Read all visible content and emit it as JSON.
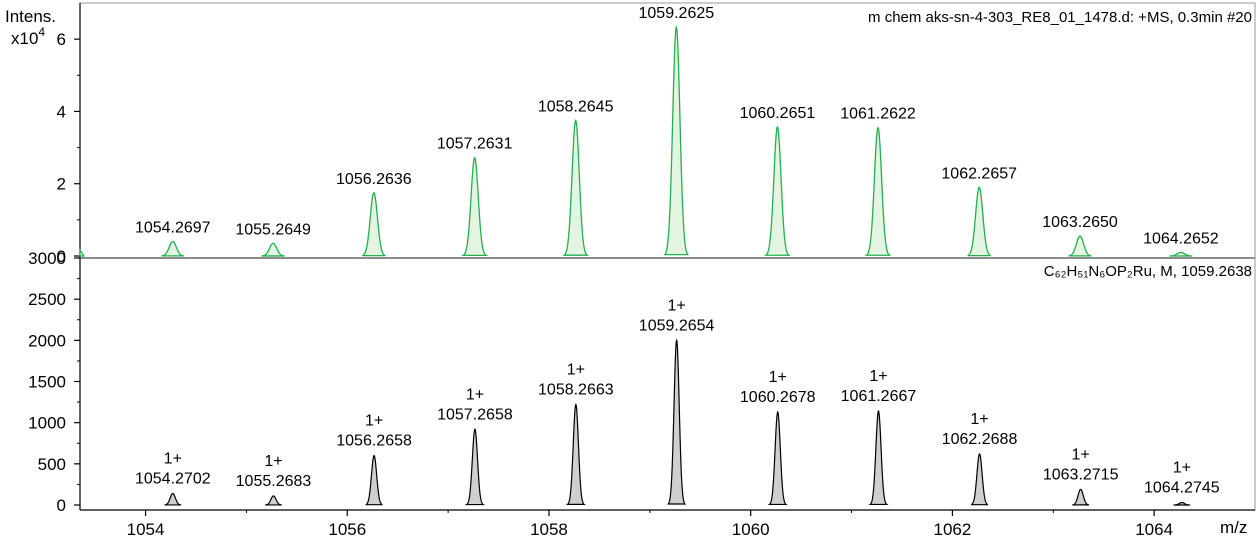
{
  "chart_data": [
    {
      "type": "line",
      "panel": "measured",
      "yaxis_title": "Intens.",
      "yaxis_multiplier": "x10",
      "yaxis_exponent": "4",
      "ylim": [
        0,
        7
      ],
      "yticks": [
        0,
        2,
        4,
        6
      ],
      "caption": "m chem aks-sn-4-303_RE8_01_1478.d: +MS, 0.3min #20",
      "color": "#22b14c",
      "fill": "#e3f4e3",
      "series": [
        {
          "peaks": [
            {
              "x": 1054.2697,
              "y": 0.4,
              "label": "1054.2697"
            },
            {
              "x": 1055.2649,
              "y": 0.35,
              "label": "1055.2649"
            },
            {
              "x": 1056.2636,
              "y": 1.75,
              "label": "1056.2636"
            },
            {
              "x": 1057.2631,
              "y": 2.72,
              "label": "1057.2631"
            },
            {
              "x": 1058.2645,
              "y": 3.75,
              "label": "1058.2645"
            },
            {
              "x": 1059.2625,
              "y": 6.33,
              "label": "1059.2625"
            },
            {
              "x": 1060.2651,
              "y": 3.57,
              "label": "1060.2651"
            },
            {
              "x": 1061.2622,
              "y": 3.55,
              "label": "1061.2622"
            },
            {
              "x": 1062.2657,
              "y": 1.9,
              "label": "1062.2657"
            },
            {
              "x": 1063.265,
              "y": 0.55,
              "label": "1063.2650"
            },
            {
              "x": 1064.2652,
              "y": 0.1,
              "label": "1064.2652"
            }
          ]
        }
      ]
    },
    {
      "type": "line",
      "panel": "simulated",
      "ylim": [
        0,
        3000
      ],
      "yticks": [
        0,
        500,
        1000,
        1500,
        2000,
        2500,
        3000
      ],
      "xlim": [
        1053.35,
        1065.0
      ],
      "xticks": [
        1054,
        1056,
        1058,
        1060,
        1062,
        1064
      ],
      "xlabel": "m/z",
      "caption": "C₆₂H₅₁N₆OP₂Ru, M, 1059.2638",
      "color": "#000000",
      "fill": "#cfcfcf",
      "series": [
        {
          "peaks": [
            {
              "x": 1054.2702,
              "y": 140,
              "charge": "1+",
              "label": "1054.2702"
            },
            {
              "x": 1055.2683,
              "y": 110,
              "charge": "1+",
              "label": "1055.2683"
            },
            {
              "x": 1056.2658,
              "y": 600,
              "charge": "1+",
              "label": "1056.2658"
            },
            {
              "x": 1057.2658,
              "y": 920,
              "charge": "1+",
              "label": "1057.2658"
            },
            {
              "x": 1058.2663,
              "y": 1220,
              "charge": "1+",
              "label": "1058.2663"
            },
            {
              "x": 1059.2654,
              "y": 2000,
              "charge": "1+",
              "label": "1059.2654"
            },
            {
              "x": 1060.2678,
              "y": 1130,
              "charge": "1+",
              "label": "1060.2678"
            },
            {
              "x": 1061.2667,
              "y": 1140,
              "charge": "1+",
              "label": "1061.2667"
            },
            {
              "x": 1062.2688,
              "y": 620,
              "charge": "1+",
              "label": "1062.2688"
            },
            {
              "x": 1063.2715,
              "y": 190,
              "charge": "1+",
              "label": "1063.2715"
            },
            {
              "x": 1064.2745,
              "y": 30,
              "charge": "1+",
              "label": "1064.2745"
            }
          ]
        }
      ]
    }
  ]
}
